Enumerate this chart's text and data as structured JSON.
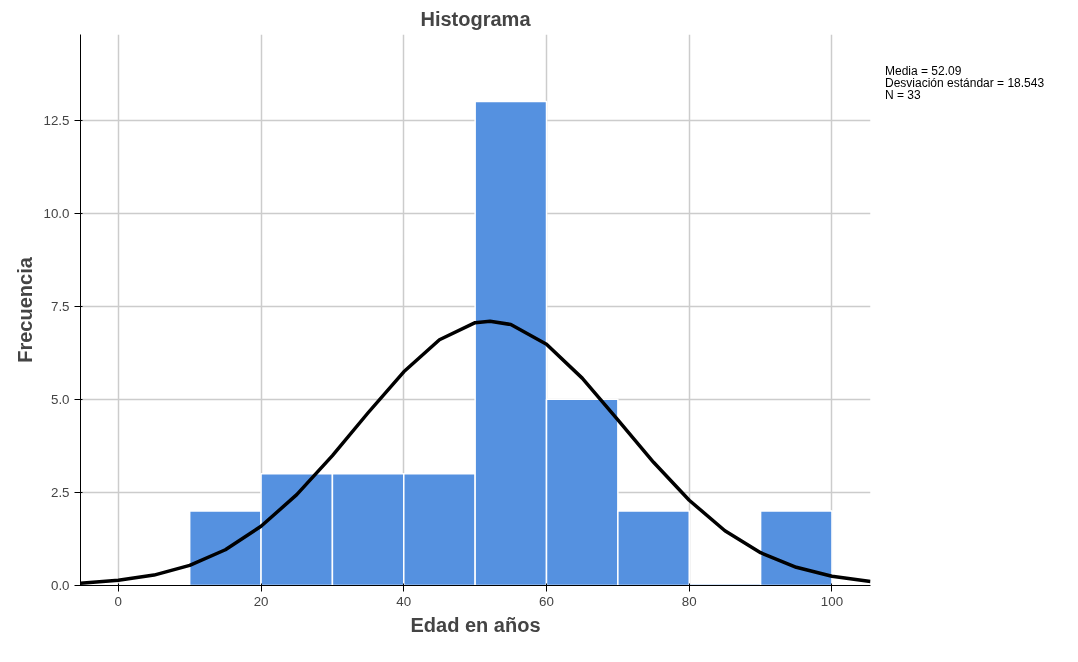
{
  "chart_data": {
    "type": "histogram",
    "title": "Histograma",
    "xlabel": "Edad en años",
    "ylabel": "Frecuencia",
    "bins": [
      10,
      20,
      30,
      40,
      50,
      60,
      70,
      80,
      90,
      100
    ],
    "values": [
      2,
      3,
      3,
      3,
      13,
      5,
      2,
      0,
      2
    ],
    "color": "#5591e0",
    "series": [
      {
        "type": "line",
        "color": "#000000",
        "x": [
          -5.3,
          0,
          5,
          10,
          15,
          20,
          25,
          30,
          35,
          40,
          45,
          50,
          52.09,
          55,
          60,
          65,
          70,
          75,
          80,
          85,
          90,
          95,
          100,
          105.4
        ],
        "values": [
          0.06,
          0.14,
          0.28,
          0.54,
          0.96,
          1.59,
          2.44,
          3.49,
          4.64,
          5.74,
          6.6,
          7.06,
          7.1,
          7.01,
          6.48,
          5.57,
          4.45,
          3.31,
          2.29,
          1.47,
          0.88,
          0.49,
          0.25,
          0.11
        ]
      }
    ],
    "xlim": [
      -5.3,
      105.4
    ],
    "ylim": [
      0,
      14.8
    ],
    "xticks": [
      0,
      20,
      40,
      60,
      80,
      100
    ],
    "yticks": [
      {
        "value": 0,
        "label": "0.0"
      },
      {
        "value": 2.5,
        "label": "2.5"
      },
      {
        "value": 5,
        "label": "5.0"
      },
      {
        "value": 7.5,
        "label": "7.5"
      },
      {
        "value": 10,
        "label": "10.0"
      },
      {
        "value": 12.5,
        "label": "12.5"
      }
    ],
    "grid": true,
    "annotations": [
      "Media = 52.09",
      "Desviación estándar = 18.543",
      "N = 33"
    ]
  }
}
